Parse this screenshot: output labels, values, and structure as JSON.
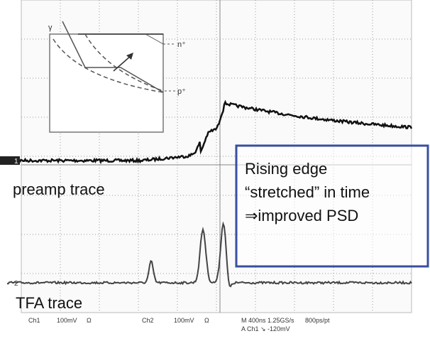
{
  "inset": {
    "gamma": "γ",
    "n_label": "n⁺",
    "p_label": "p⁺"
  },
  "channel_markers": [
    "1",
    "2"
  ],
  "trace_labels": {
    "preamp": "preamp trace",
    "tfa": "TFA trace"
  },
  "callout": {
    "lines": [
      "Rising edge",
      "“stretched” in time",
      "⇒improved PSD"
    ]
  },
  "status_bar": {
    "ch1": "Ch1",
    "ch1_scale": "100mV",
    "ch1_coupling": "Ω",
    "ch2": "Ch2",
    "ch2_scale": "100mV",
    "ch2_coupling": "Ω",
    "timebase": "M 400ns 1.25GS/s",
    "resolution": "800ps/pt",
    "trigger": "A Ch1 ↘ -120mV"
  }
}
